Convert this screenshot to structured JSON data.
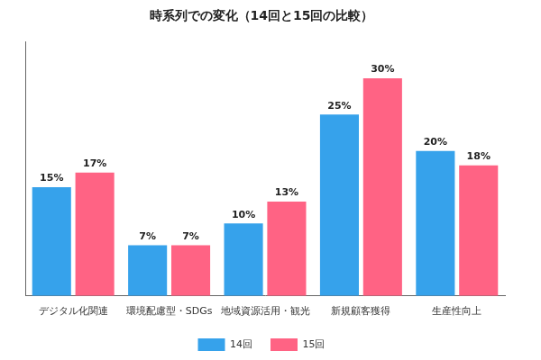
{
  "chart_data": {
    "type": "bar",
    "title": "時系列での変化（14回と15回の比較）",
    "categories": [
      "デジタル化関連",
      "環境配慮型・SDGs",
      "地域資源活用・観光",
      "新規顧客獲得",
      "生産性向上"
    ],
    "series": [
      {
        "name": "14回",
        "color": "#36a2eb",
        "values": [
          15,
          7,
          10,
          25,
          20
        ],
        "value_labels": [
          "15%",
          "7%",
          "10%",
          "25%",
          "20%"
        ]
      },
      {
        "name": "15回",
        "color": "#ff6384",
        "values": [
          17,
          7,
          13,
          30,
          18
        ],
        "value_labels": [
          "17%",
          "7%",
          "13%",
          "30%",
          "18%"
        ]
      }
    ],
    "ylim": [
      0,
      35
    ],
    "grid": false,
    "legend": "bottom",
    "data_labels": true,
    "tick_labels": "x"
  }
}
